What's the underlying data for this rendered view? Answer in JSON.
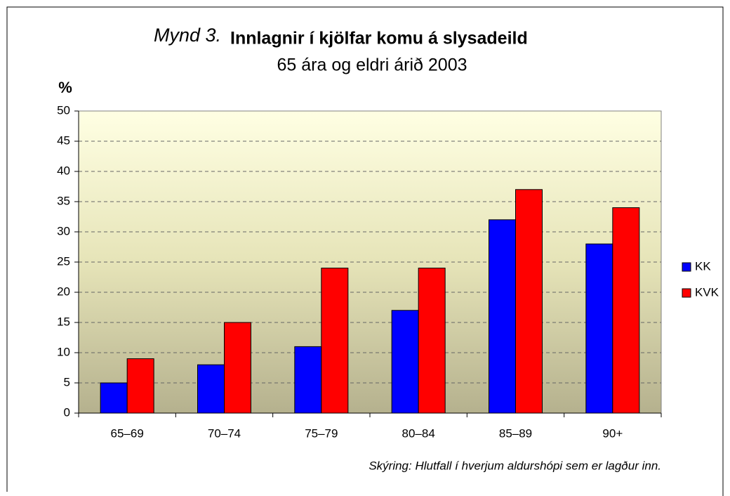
{
  "chart_data": {
    "type": "bar",
    "title_prefix": "Mynd 3.",
    "title": "Innlagnir í kjölfar komu á slysadeild",
    "subtitle": "65 ára og eldri árið 2003",
    "y_label": "%",
    "note": "Skýring: Hlutfall í hverjum aldurshópi sem er lagður inn.",
    "categories": [
      "65–69",
      "70–74",
      "75–79",
      "80–84",
      "85–89",
      "90+"
    ],
    "series": [
      {
        "name": "KK",
        "color": "#0000ff",
        "values": [
          5,
          8,
          11,
          17,
          32,
          28
        ]
      },
      {
        "name": "KVK",
        "color": "#ff0000",
        "values": [
          9,
          15,
          24,
          24,
          37,
          34
        ]
      }
    ],
    "ylim": [
      0,
      50
    ],
    "yticks": [
      0,
      5,
      10,
      15,
      20,
      25,
      30,
      35,
      40,
      45,
      50
    ],
    "grid": true,
    "legend": "right"
  }
}
